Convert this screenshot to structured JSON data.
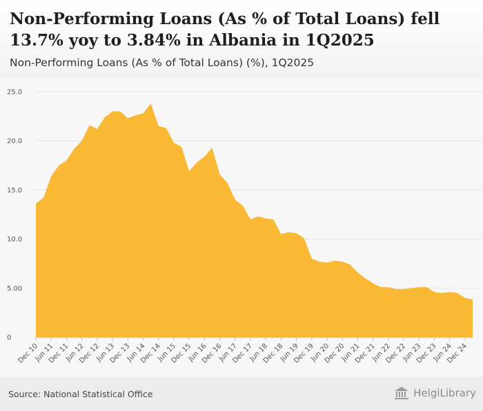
{
  "title": "Non-Performing Loans (As % of Total Loans) fell 13.7% yoy to 3.84% in Albania in 1Q2025",
  "subtitle": "Non-Performing Loans (As % of Total Loans) (%), 1Q2025",
  "source": "Source: National Statistical Office",
  "logo_text": "HelgiLibrary",
  "colors": {
    "area": "#F9B934",
    "grid": "#e2e2e2",
    "plot_bg": "#f7f7f7"
  },
  "chart_data": {
    "type": "area",
    "title": "Non-Performing Loans (As % of Total Loans) fell 13.7% yoy to 3.84% in Albania in 1Q2025",
    "subtitle": "Non-Performing Loans (As % of Total Loans) (%), 1Q2025",
    "xlabel": "",
    "ylabel": "",
    "ylim": [
      0,
      25
    ],
    "yticks": [
      0,
      5,
      10,
      15,
      20,
      25
    ],
    "ytick_labels": [
      "0",
      "5.00",
      "10.0",
      "15.0",
      "20.0",
      "25.0"
    ],
    "grid": true,
    "x": [
      "Dec 10",
      "Mar 11",
      "Jun 11",
      "Sep 11",
      "Dec 11",
      "Mar 12",
      "Jun 12",
      "Sep 12",
      "Dec 12",
      "Mar 13",
      "Jun 13",
      "Sep 13",
      "Dec 13",
      "Mar 14",
      "Jun 14",
      "Sep 14",
      "Dec 14",
      "Mar 15",
      "Jun 15",
      "Sep 15",
      "Dec 15",
      "Mar 16",
      "Jun 16",
      "Sep 16",
      "Dec 16",
      "Mar 17",
      "Jun 17",
      "Sep 17",
      "Dec 17",
      "Mar 18",
      "Jun 18",
      "Sep 18",
      "Dec 18",
      "Mar 19",
      "Jun 19",
      "Sep 19",
      "Dec 19",
      "Mar 20",
      "Jun 20",
      "Sep 20",
      "Dec 20",
      "Mar 21",
      "Jun 21",
      "Sep 21",
      "Dec 21",
      "Mar 22",
      "Jun 22",
      "Sep 22",
      "Dec 22",
      "Mar 23",
      "Jun 23",
      "Sep 23",
      "Dec 23",
      "Mar 24",
      "Jun 24",
      "Sep 24",
      "Dec 24",
      "Mar 25"
    ],
    "xtick_labels": [
      "Dec 10",
      "Jun 11",
      "Dec 11",
      "Jun 12",
      "Dec 12",
      "Jun 13",
      "Dec 13",
      "Jun 14",
      "Dec 14",
      "Jun 15",
      "Dec 15",
      "Jun 16",
      "Dec 16",
      "Jun 17",
      "Dec 17",
      "Jun 18",
      "Dec 18",
      "Jun 19",
      "Dec 19",
      "Jun 20",
      "Dec 20",
      "Jun 21",
      "Dec 21",
      "Jun 22",
      "Dec 22",
      "Jun 23",
      "Dec 23",
      "Jun 24",
      "Dec 24"
    ],
    "series": [
      {
        "name": "Non-Performing Loans (As % of Total Loans) (%)",
        "values": [
          13.6,
          14.2,
          16.4,
          17.5,
          18.0,
          19.2,
          20.0,
          21.6,
          21.2,
          22.4,
          23.0,
          23.0,
          22.3,
          22.6,
          22.8,
          23.8,
          21.5,
          21.3,
          19.8,
          19.4,
          16.9,
          17.8,
          18.4,
          19.3,
          16.6,
          15.7,
          14.0,
          13.4,
          12.0,
          12.3,
          12.1,
          12.0,
          10.5,
          10.7,
          10.6,
          10.1,
          8.0,
          7.7,
          7.6,
          7.8,
          7.7,
          7.4,
          6.6,
          6.0,
          5.5,
          5.1,
          5.1,
          4.9,
          4.9,
          5.0,
          5.1,
          5.1,
          4.6,
          4.5,
          4.6,
          4.5,
          4.0,
          3.84
        ]
      }
    ]
  }
}
